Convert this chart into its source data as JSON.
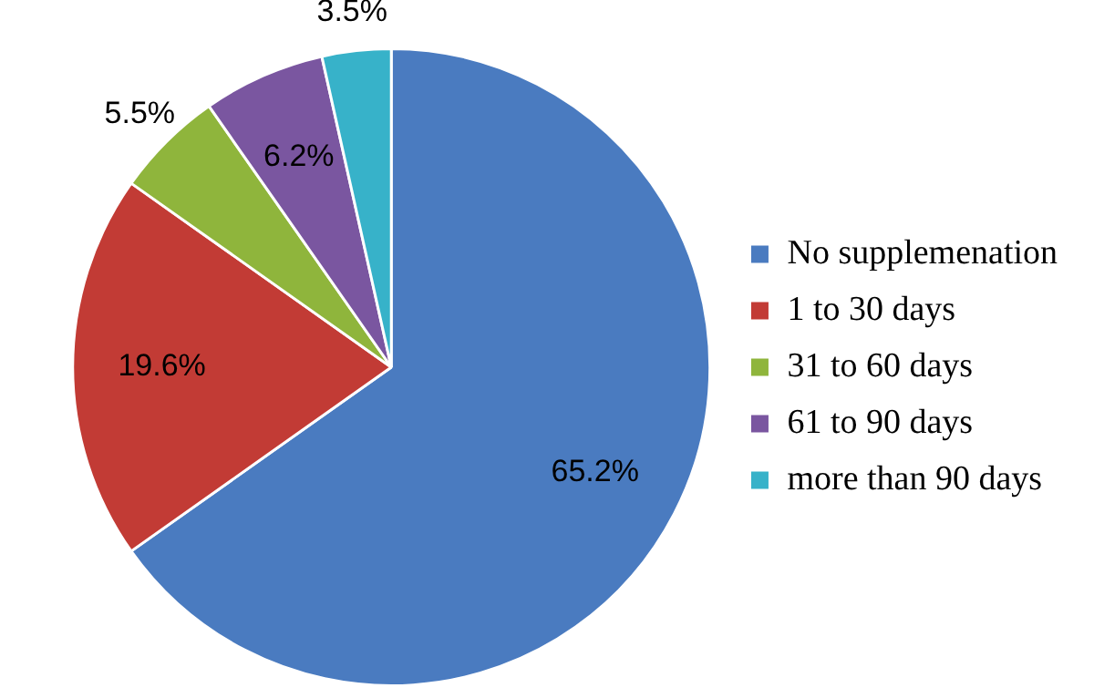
{
  "chart_data": {
    "type": "pie",
    "categories": [
      "No supplemenation",
      "1 to 30 days",
      "31 to 60 days",
      "61 to 90 days",
      "more than 90 days"
    ],
    "values": [
      65.2,
      19.6,
      5.5,
      6.2,
      3.5
    ],
    "colors": [
      "#4a7bc0",
      "#c23b35",
      "#8fb53c",
      "#7a56a0",
      "#37b2c9"
    ],
    "value_labels": [
      "65.2%",
      "19.6%",
      "5.5%",
      "6.2%",
      "3.5%"
    ],
    "legend": "right"
  }
}
